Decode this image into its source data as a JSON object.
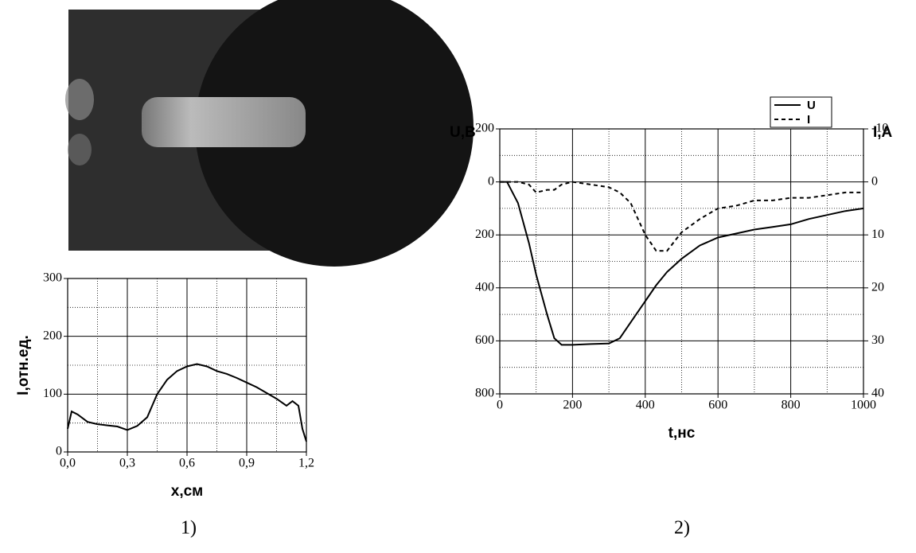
{
  "chart_data": [
    {
      "type": "line",
      "caption": "1)",
      "xlabel": "x,см",
      "ylabel": "I,отн.ед.",
      "xlim": [
        0,
        1.2
      ],
      "ylim": [
        0,
        300
      ],
      "xticks": [
        {
          "value": 0,
          "label": "0,0"
        },
        {
          "value": 0.3,
          "label": "0,3"
        },
        {
          "value": 0.6,
          "label": "0,6"
        },
        {
          "value": 0.9,
          "label": "0,9"
        },
        {
          "value": 1.2,
          "label": "1,2"
        }
      ],
      "yticks": [
        0,
        100,
        200,
        300
      ],
      "minor_xticks": [
        0.15,
        0.45,
        0.75,
        1.05
      ],
      "minor_yticks": [
        50,
        150,
        250
      ],
      "grid": true,
      "x": [
        0,
        0.02,
        0.05,
        0.1,
        0.15,
        0.2,
        0.25,
        0.3,
        0.35,
        0.4,
        0.45,
        0.5,
        0.55,
        0.6,
        0.65,
        0.7,
        0.75,
        0.8,
        0.85,
        0.9,
        0.95,
        1.0,
        1.05,
        1.1,
        1.13,
        1.16,
        1.18,
        1.2
      ],
      "series": [
        {
          "color": "#000000",
          "line_style": "solid",
          "values": [
            40,
            70,
            65,
            52,
            48,
            46,
            44,
            38,
            45,
            60,
            100,
            125,
            140,
            148,
            152,
            148,
            140,
            135,
            128,
            120,
            112,
            102,
            92,
            80,
            88,
            80,
            40,
            18
          ]
        }
      ]
    },
    {
      "type": "line",
      "caption": "2)",
      "xlabel": "t,нс",
      "ylabel": "U,В",
      "y2label": "I,A",
      "invert_y": true,
      "xlim": [
        0,
        1000
      ],
      "ylim": [
        -200,
        800
      ],
      "y2lim": [
        -10,
        40
      ],
      "xticks": [
        0,
        200,
        400,
        600,
        800,
        1000
      ],
      "yticks": [
        -200,
        0,
        200,
        400,
        600,
        800
      ],
      "y2ticks": [
        -10,
        0,
        10,
        20,
        30,
        40
      ],
      "minor_xticks": [
        100,
        300,
        500,
        700,
        900
      ],
      "minor_yticks": [
        -100,
        100,
        300,
        500,
        700
      ],
      "grid": true,
      "legend": "top-right",
      "x": [
        0,
        20,
        50,
        80,
        100,
        130,
        150,
        170,
        200,
        250,
        300,
        330,
        360,
        400,
        430,
        460,
        500,
        550,
        600,
        650,
        700,
        750,
        800,
        850,
        900,
        950,
        1000
      ],
      "series": [
        {
          "name": "U",
          "color": "#000000",
          "line_style": "solid",
          "values": [
            0,
            0,
            80,
            230,
            350,
            500,
            590,
            615,
            615,
            612,
            610,
            590,
            530,
            450,
            390,
            340,
            290,
            240,
            210,
            195,
            180,
            170,
            160,
            140,
            125,
            110,
            100
          ]
        },
        {
          "name": "I",
          "color": "#000000",
          "line_style": "dashed",
          "axis": "y2",
          "values": [
            0,
            0,
            0,
            0.5,
            2,
            1.5,
            1.5,
            0.5,
            0,
            0.5,
            1,
            2,
            4,
            10,
            13,
            13,
            9.5,
            7,
            5,
            4.5,
            3.5,
            3.5,
            3,
            3,
            2.5,
            2,
            2
          ]
        }
      ]
    }
  ]
}
